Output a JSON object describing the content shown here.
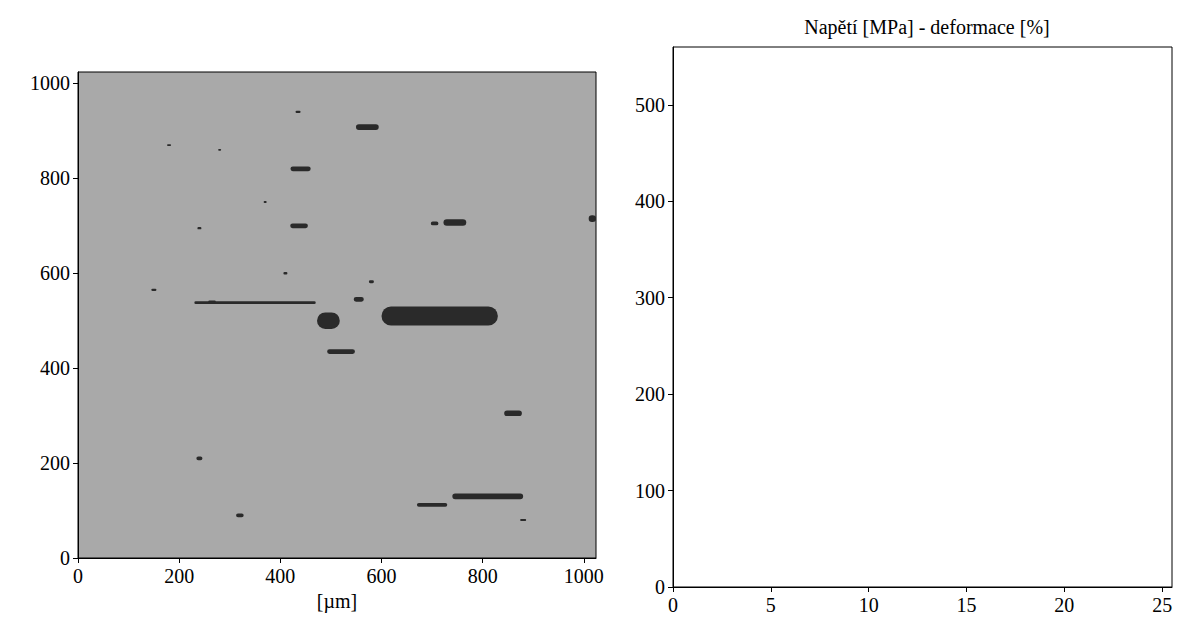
{
  "chart_data": [
    {
      "type": "micrograph",
      "xlabel": "[µm]",
      "xlim": [
        0,
        1024
      ],
      "ylim": [
        0,
        1024
      ],
      "xticks": [
        0,
        200,
        400,
        600,
        800,
        1000
      ],
      "yticks": [
        0,
        200,
        400,
        600,
        800,
        1000
      ],
      "color": "#2a2a2a",
      "inclusions": [
        {
          "x": 572,
          "y": 908,
          "width": 45,
          "height": 12
        },
        {
          "x": 440,
          "y": 820,
          "width": 40,
          "height": 10
        },
        {
          "x": 437,
          "y": 700,
          "width": 35,
          "height": 10
        },
        {
          "x": 705,
          "y": 705,
          "width": 15,
          "height": 8
        },
        {
          "x": 745,
          "y": 707,
          "width": 45,
          "height": 14
        },
        {
          "x": 1017,
          "y": 715,
          "width": 15,
          "height": 14
        },
        {
          "x": 350,
          "y": 538,
          "width": 240,
          "height": 6
        },
        {
          "x": 265,
          "y": 540,
          "width": 15,
          "height": 5
        },
        {
          "x": 495,
          "y": 500,
          "width": 45,
          "height": 35
        },
        {
          "x": 555,
          "y": 545,
          "width": 20,
          "height": 10
        },
        {
          "x": 715,
          "y": 510,
          "width": 230,
          "height": 40
        },
        {
          "x": 520,
          "y": 435,
          "width": 55,
          "height": 10
        },
        {
          "x": 860,
          "y": 305,
          "width": 35,
          "height": 12
        },
        {
          "x": 810,
          "y": 130,
          "width": 140,
          "height": 12
        },
        {
          "x": 700,
          "y": 112,
          "width": 60,
          "height": 8
        },
        {
          "x": 240,
          "y": 210,
          "width": 12,
          "height": 8
        },
        {
          "x": 320,
          "y": 90,
          "width": 15,
          "height": 8
        },
        {
          "x": 150,
          "y": 565,
          "width": 10,
          "height": 5
        },
        {
          "x": 435,
          "y": 940,
          "width": 10,
          "height": 5
        },
        {
          "x": 240,
          "y": 695,
          "width": 8,
          "height": 5
        },
        {
          "x": 410,
          "y": 600,
          "width": 8,
          "height": 5
        },
        {
          "x": 580,
          "y": 582,
          "width": 10,
          "height": 6
        },
        {
          "x": 180,
          "y": 870,
          "width": 8,
          "height": 4
        },
        {
          "x": 280,
          "y": 860,
          "width": 6,
          "height": 4
        },
        {
          "x": 370,
          "y": 750,
          "width": 6,
          "height": 4
        },
        {
          "x": 880,
          "y": 80,
          "width": 12,
          "height": 4
        }
      ]
    },
    {
      "type": "line",
      "title": "Napětí [MPa] - deformace [%]",
      "xlim": [
        0,
        25.5
      ],
      "ylim": [
        0,
        560
      ],
      "xticks": [
        0,
        5,
        10,
        15,
        20,
        25
      ],
      "yticks": [
        0,
        100,
        200,
        300,
        400,
        500
      ],
      "series": []
    }
  ]
}
